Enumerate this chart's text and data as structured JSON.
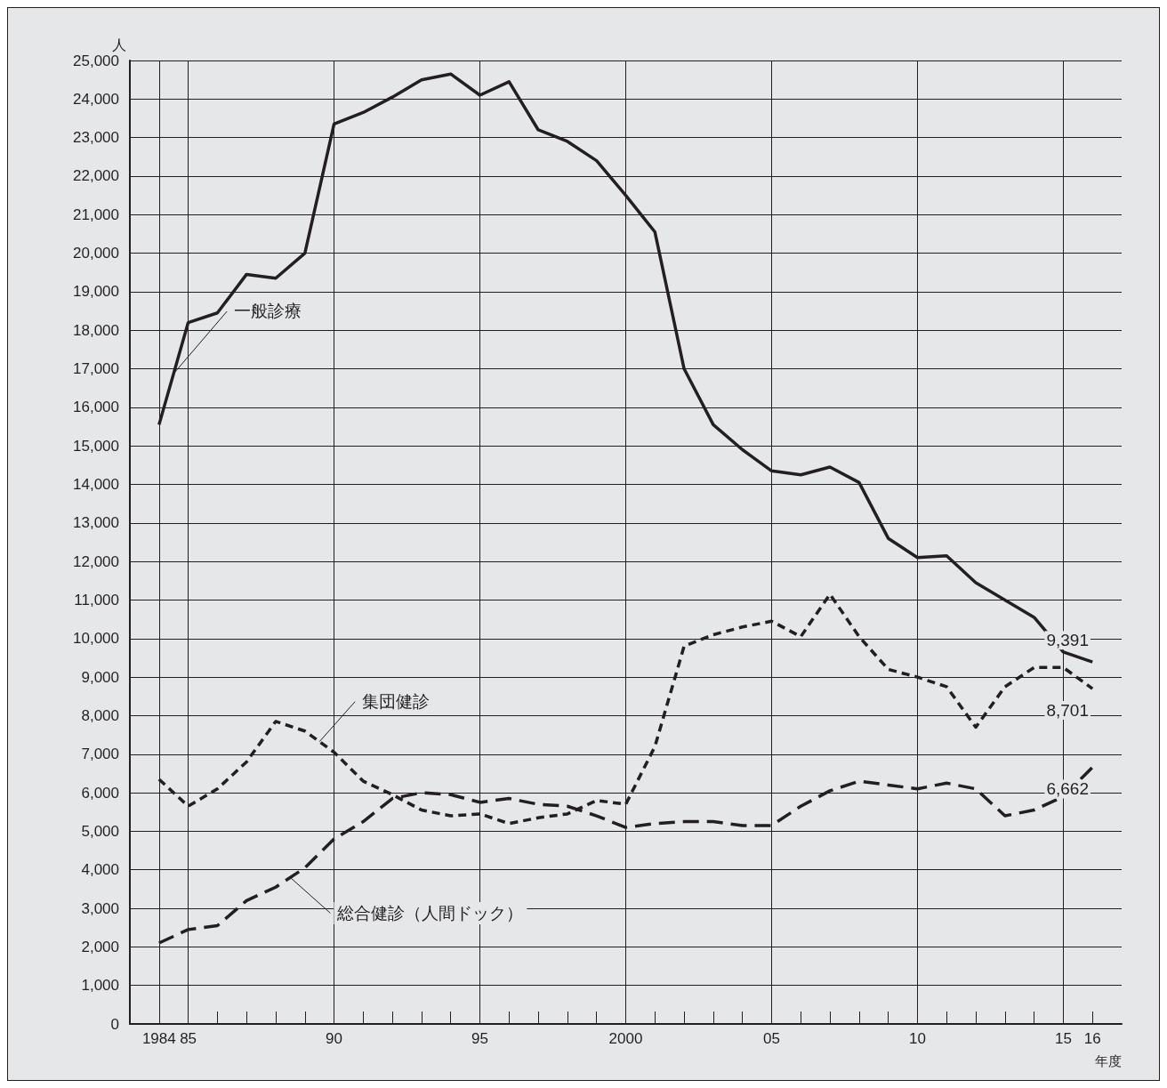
{
  "chart_data": {
    "type": "line",
    "xlabel": "年度",
    "ylabel": "人",
    "x": [
      1984,
      1985,
      1986,
      1987,
      1988,
      1989,
      1990,
      1991,
      1992,
      1993,
      1994,
      1995,
      1996,
      1997,
      1998,
      1999,
      2000,
      2001,
      2002,
      2003,
      2004,
      2005,
      2006,
      2007,
      2008,
      2009,
      2010,
      2011,
      2012,
      2013,
      2014,
      2015,
      2016
    ],
    "series": [
      {
        "name": "一般診療",
        "color": "#231f20",
        "line_style": "solid",
        "values": [
          15550,
          18200,
          18450,
          19450,
          19350,
          20000,
          23350,
          23650,
          24050,
          24500,
          24650,
          24100,
          24450,
          23200,
          22900,
          22400,
          21500,
          20550,
          17000,
          15550,
          14900,
          14350,
          14250,
          14450,
          14050,
          12600,
          12100,
          12150,
          11450,
          11000,
          10550,
          9650,
          9391
        ],
        "value_labels": [
          null,
          null,
          null,
          null,
          null,
          null,
          null,
          null,
          null,
          null,
          null,
          null,
          null,
          null,
          null,
          null,
          null,
          null,
          null,
          null,
          null,
          null,
          null,
          null,
          null,
          null,
          null,
          null,
          null,
          null,
          null,
          null,
          "9,391"
        ]
      },
      {
        "name": "集団健診",
        "color": "#231f20",
        "line_style": "dashed",
        "values": [
          6350,
          5650,
          6100,
          6800,
          7850,
          7600,
          7050,
          6300,
          5950,
          5550,
          5400,
          5450,
          5200,
          5350,
          5450,
          5800,
          5700,
          7200,
          9800,
          10100,
          10300,
          10450,
          10050,
          11150,
          10050,
          9200,
          9000,
          8750,
          7700,
          8750,
          9250,
          9250,
          8701
        ],
        "value_labels": [
          null,
          null,
          null,
          null,
          null,
          null,
          null,
          null,
          null,
          null,
          null,
          null,
          null,
          null,
          null,
          null,
          null,
          null,
          null,
          null,
          null,
          null,
          null,
          null,
          null,
          null,
          null,
          null,
          null,
          null,
          null,
          null,
          "8,701"
        ]
      },
      {
        "name": "総合健診（人間ドック）",
        "color": "#231f20",
        "line_style": "dashed",
        "values": [
          2100,
          2450,
          2550,
          3200,
          3550,
          4050,
          4800,
          5250,
          5850,
          6000,
          5950,
          5750,
          5850,
          5700,
          5650,
          5400,
          5100,
          5200,
          5250,
          5250,
          5150,
          5150,
          5650,
          6050,
          6300,
          6200,
          6100,
          6250,
          6100,
          5400,
          5550,
          5900,
          6662
        ],
        "value_labels": [
          null,
          null,
          null,
          null,
          null,
          null,
          null,
          null,
          null,
          null,
          null,
          null,
          null,
          null,
          null,
          null,
          null,
          null,
          null,
          null,
          null,
          null,
          null,
          null,
          null,
          null,
          null,
          null,
          null,
          null,
          null,
          null,
          "6,662"
        ]
      }
    ],
    "xlim": [
      1983,
      2017
    ],
    "xticks": [
      {
        "value": 1984,
        "label": "1984"
      },
      {
        "value": 1985,
        "label": "85"
      },
      {
        "value": 1986,
        "label": null
      },
      {
        "value": 1987,
        "label": null
      },
      {
        "value": 1988,
        "label": null
      },
      {
        "value": 1989,
        "label": null
      },
      {
        "value": 1990,
        "label": "90"
      },
      {
        "value": 1991,
        "label": null
      },
      {
        "value": 1992,
        "label": null
      },
      {
        "value": 1993,
        "label": null
      },
      {
        "value": 1994,
        "label": null
      },
      {
        "value": 1995,
        "label": "95"
      },
      {
        "value": 1996,
        "label": null
      },
      {
        "value": 1997,
        "label": null
      },
      {
        "value": 1998,
        "label": null
      },
      {
        "value": 1999,
        "label": null
      },
      {
        "value": 2000,
        "label": "2000"
      },
      {
        "value": 2001,
        "label": null
      },
      {
        "value": 2002,
        "label": null
      },
      {
        "value": 2003,
        "label": null
      },
      {
        "value": 2004,
        "label": null
      },
      {
        "value": 2005,
        "label": "05"
      },
      {
        "value": 2006,
        "label": null
      },
      {
        "value": 2007,
        "label": null
      },
      {
        "value": 2008,
        "label": null
      },
      {
        "value": 2009,
        "label": null
      },
      {
        "value": 2010,
        "label": "10"
      },
      {
        "value": 2011,
        "label": null
      },
      {
        "value": 2012,
        "label": null
      },
      {
        "value": 2013,
        "label": null
      },
      {
        "value": 2014,
        "label": null
      },
      {
        "value": 2015,
        "label": "15"
      },
      {
        "value": 2016,
        "label": "16"
      }
    ],
    "ylim": [
      0,
      25000
    ],
    "yticks": [
      0,
      {
        "value": 1000,
        "label": "1,000"
      },
      {
        "value": 2000,
        "label": "2,000"
      },
      {
        "value": 3000,
        "label": "3,000"
      },
      {
        "value": 4000,
        "label": "4,000"
      },
      {
        "value": 5000,
        "label": "5,000"
      },
      {
        "value": 6000,
        "label": "6,000"
      },
      {
        "value": 7000,
        "label": "7,000"
      },
      {
        "value": 8000,
        "label": "8,000"
      },
      {
        "value": 9000,
        "label": "9,000"
      },
      {
        "value": 10000,
        "label": "10,000"
      },
      {
        "value": 11000,
        "label": "11,000"
      },
      {
        "value": 12000,
        "label": "12,000"
      },
      {
        "value": 13000,
        "label": "13,000"
      },
      {
        "value": 14000,
        "label": "14,000"
      },
      {
        "value": 15000,
        "label": "15,000"
      },
      {
        "value": 16000,
        "label": "16,000"
      },
      {
        "value": 17000,
        "label": "17,000"
      },
      {
        "value": 18000,
        "label": "18,000"
      },
      {
        "value": 19000,
        "label": "19,000"
      },
      {
        "value": 20000,
        "label": "20,000"
      },
      {
        "value": 21000,
        "label": "21,000"
      },
      {
        "value": 22000,
        "label": "22,000"
      },
      {
        "value": 23000,
        "label": "23,000"
      },
      {
        "value": 24000,
        "label": "24,000"
      },
      {
        "value": 25000,
        "label": "25,000"
      }
    ],
    "grid": true,
    "marker": "none",
    "legend": false
  }
}
